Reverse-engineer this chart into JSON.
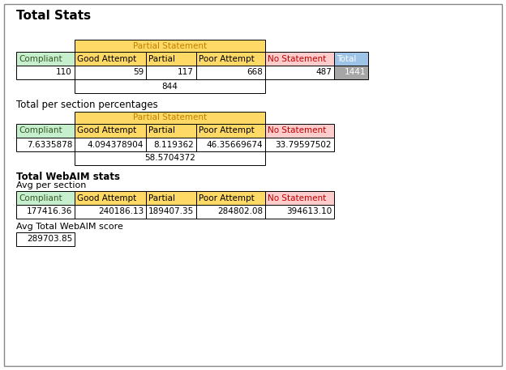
{
  "title": "Total Stats",
  "bg_color": "#ffffff",
  "section1_header": "Partial Statement",
  "col_headers_1": [
    "Compliant",
    "Good Attempt",
    "Partial",
    "Poor Attempt",
    "No Statement",
    "Total"
  ],
  "row1_values": [
    "110",
    "59",
    "117",
    "668",
    "487",
    "1441"
  ],
  "subtotal_1": "844",
  "section2_title": "Total per section percentages",
  "section2_header": "Partial Statement",
  "col_headers_2": [
    "Compliant",
    "Good Attempt",
    "Partial",
    "Poor Attempt",
    "No Statement"
  ],
  "row2_values": [
    "7.6335878",
    "4.094378904",
    "8.119362",
    "46.35669674",
    "33.79597502"
  ],
  "subtotal_2": "58.5704372",
  "section3_title": "Total WebAIM stats",
  "section3_subtitle": "Avg per section",
  "col_headers_3": [
    "Compliant",
    "Good Attempt",
    "Partial",
    "Poor Attempt",
    "No Statement"
  ],
  "row3_values": [
    "177416.36",
    "240186.13",
    "189407.35",
    "284802.08",
    "394613.10"
  ],
  "section4_label": "Avg Total WebAIM score",
  "section4_value": "289703.85",
  "color_compliant_bg": "#c6efce",
  "color_compliant_text": "#375623",
  "color_partial_stmt_bg": "#ffd966",
  "color_partial_stmt_text": "#c08000",
  "color_good_attempt_bg": "#ffd966",
  "color_good_attempt_text": "#000000",
  "color_partial_bg": "#ffd966",
  "color_partial_text": "#000000",
  "color_poor_attempt_bg": "#ffd966",
  "color_poor_attempt_text": "#000000",
  "color_no_stmt_bg": "#ffcccc",
  "color_no_stmt_text": "#c00000",
  "color_total_bg": "#9dc3e6",
  "color_total_text": "#ffffff",
  "color_total_val_bg": "#a6a6a6",
  "color_total_val_text": "#ffffff",
  "color_cell_bg": "#ffffff",
  "color_cell_text": "#000000",
  "color_border": "#000000",
  "color_outer_border": "#888888"
}
